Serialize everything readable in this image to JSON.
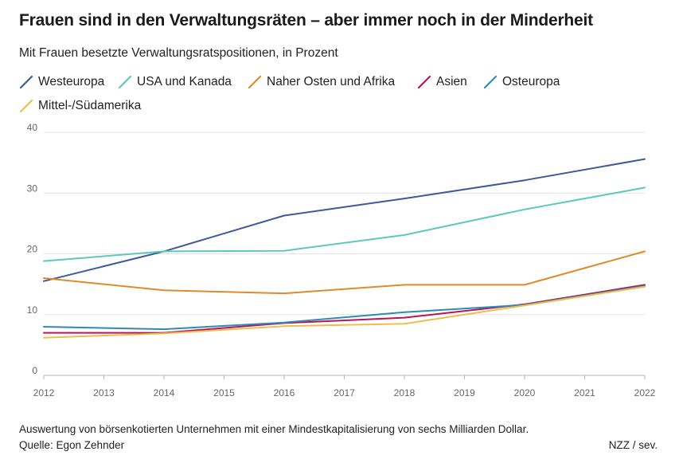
{
  "chart_data": {
    "type": "line",
    "title": "Frauen sind in den Verwaltungsräten – aber immer noch in der Minderheit",
    "subtitle": "Mit Frauen besetzte Verwaltungsratspositionen, in Prozent",
    "xlabel": "",
    "ylabel": "",
    "x": [
      2012,
      2014,
      2016,
      2018,
      2020,
      2022
    ],
    "x_ticks": [
      "2012",
      "2013",
      "2014",
      "2015",
      "2016",
      "2017",
      "2018",
      "2019",
      "2020",
      "2021",
      "2022"
    ],
    "y_ticks": [
      "0",
      "10",
      "20",
      "30",
      "40"
    ],
    "ylim": [
      0,
      40
    ],
    "xlim": [
      2012,
      2022
    ],
    "grid": true,
    "legend_position": "top",
    "series": [
      {
        "name": "Westeuropa",
        "color": "#3d5a99",
        "values": [
          15.5,
          20.4,
          26.3,
          29.1,
          32.1,
          35.6
        ]
      },
      {
        "name": "USA und Kanada",
        "color": "#5ec9b8",
        "values": [
          18.8,
          20.4,
          20.5,
          23.1,
          27.3,
          30.9
        ]
      },
      {
        "name": "Naher Osten und Afrika",
        "color": "#e08a2b",
        "values": [
          16.0,
          14.0,
          13.5,
          14.9,
          14.9,
          20.4
        ]
      },
      {
        "name": "Asien",
        "color": "#b5165c",
        "values": [
          7.0,
          7.0,
          8.6,
          9.5,
          11.7,
          14.9
        ]
      },
      {
        "name": "Osteuropa",
        "color": "#2f8bb5",
        "values": [
          8.0,
          7.6,
          8.7,
          10.4,
          11.6,
          14.7
        ]
      },
      {
        "name": "Mittel-/Südamerika",
        "color": "#edbd4e",
        "values": [
          6.2,
          6.9,
          8.1,
          8.5,
          11.5,
          14.6
        ]
      }
    ]
  },
  "footer": {
    "note": "Auswertung von börsenkotierten Unternehmen mit einer Mindestkapitalisierung von sechs Milliarden Dollar.",
    "source": "Quelle: Egon Zehnder",
    "credit": "NZZ / sev."
  }
}
